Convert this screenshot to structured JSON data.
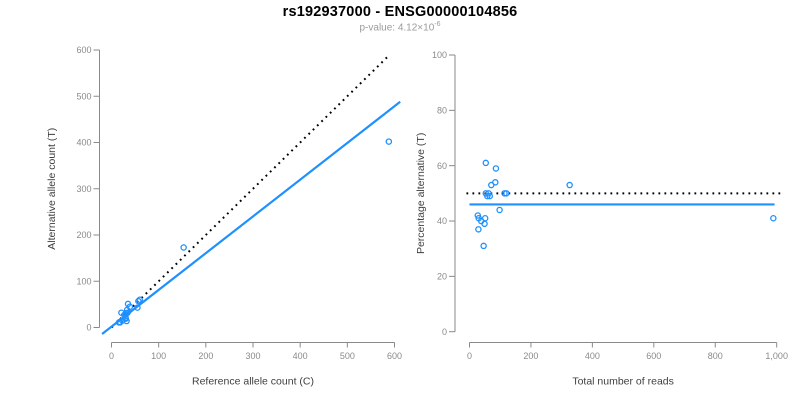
{
  "header": {
    "title": "rs192937000 - ENSG00000104856",
    "subtitle_text": "p-value: 4.12×10",
    "subtitle_exponent": "-6"
  },
  "colors": {
    "point_blue": "#1E90FF",
    "fit_line_blue": "#1E90FF",
    "dotted_black": "#000000",
    "axis_line": "#8A8A8A",
    "tick_label": "#8A8A8A",
    "axis_title": "#3F3F3F",
    "title_text": "#000000",
    "subtitle_text_color": "#9B9B9B"
  },
  "chart_data": [
    {
      "id": "allele-counts",
      "type": "scatter",
      "title": "",
      "xlabel": "Reference allele count (C)",
      "ylabel": "Alternative allele count (T)",
      "xlim": [
        0,
        600
      ],
      "ylim": [
        0,
        600
      ],
      "xticks": [
        0,
        100,
        200,
        300,
        400,
        500,
        600
      ],
      "xtick_labels": [
        "0",
        "100",
        "200",
        "300",
        "400",
        "500",
        "600"
      ],
      "yticks": [
        0,
        100,
        200,
        300,
        400,
        500,
        600
      ],
      "ytick_labels": [
        "0",
        "100",
        "200",
        "300",
        "400",
        "500",
        "600"
      ],
      "grid": false,
      "points": [
        [
          21,
          32
        ],
        [
          35,
          51
        ],
        [
          33,
          38
        ],
        [
          39,
          45
        ],
        [
          27,
          27
        ],
        [
          30,
          28
        ],
        [
          31,
          31
        ],
        [
          34,
          32
        ],
        [
          57,
          57
        ],
        [
          60,
          60
        ],
        [
          55,
          43
        ],
        [
          16,
          11
        ],
        [
          18,
          12
        ],
        [
          30,
          21
        ],
        [
          23,
          15
        ],
        [
          30,
          19
        ],
        [
          18,
          11
        ],
        [
          32,
          14
        ],
        [
          153,
          173
        ],
        [
          588,
          402
        ]
      ],
      "lines": [
        {
          "name": "identity-line",
          "style": "dotted",
          "color": "#000000",
          "x": [
            0,
            585
          ],
          "y": [
            0,
            585
          ]
        },
        {
          "name": "fit-line",
          "style": "solid",
          "color": "#1E90FF",
          "x": [
            -20,
            612
          ],
          "y": [
            -14,
            488
          ]
        }
      ]
    },
    {
      "id": "percentage-alternative",
      "type": "scatter",
      "title": "",
      "xlabel": "Total number of reads",
      "ylabel": "Percentage alternative (T)",
      "xlim": [
        0,
        1000
      ],
      "ylim": [
        0,
        100
      ],
      "xticks": [
        0,
        200,
        400,
        600,
        800,
        1000
      ],
      "xtick_labels": [
        "0",
        "200",
        "400",
        "600",
        "800",
        "1,000"
      ],
      "yticks": [
        0,
        20,
        40,
        60,
        80,
        100
      ],
      "ytick_labels": [
        "0",
        "20",
        "40",
        "60",
        "80",
        "100"
      ],
      "grid": false,
      "points": [
        [
          53,
          61
        ],
        [
          86,
          59
        ],
        [
          71,
          53
        ],
        [
          84,
          54
        ],
        [
          326,
          53
        ],
        [
          53,
          50
        ],
        [
          58,
          49
        ],
        [
          62,
          50
        ],
        [
          66,
          49
        ],
        [
          114,
          50
        ],
        [
          120,
          50
        ],
        [
          98,
          44
        ],
        [
          27,
          42
        ],
        [
          30,
          41
        ],
        [
          51,
          41
        ],
        [
          38,
          40
        ],
        [
          49,
          39
        ],
        [
          29,
          37
        ],
        [
          46,
          31
        ],
        [
          989,
          41
        ]
      ],
      "lines": [
        {
          "name": "expected-50pct-line",
          "style": "dotted",
          "color": "#000000",
          "x": [
            -10,
            1025
          ],
          "y": [
            50,
            50
          ]
        },
        {
          "name": "fit-line",
          "style": "solid",
          "color": "#1E90FF",
          "x": [
            0,
            993
          ],
          "y": [
            46,
            46
          ]
        }
      ]
    }
  ]
}
